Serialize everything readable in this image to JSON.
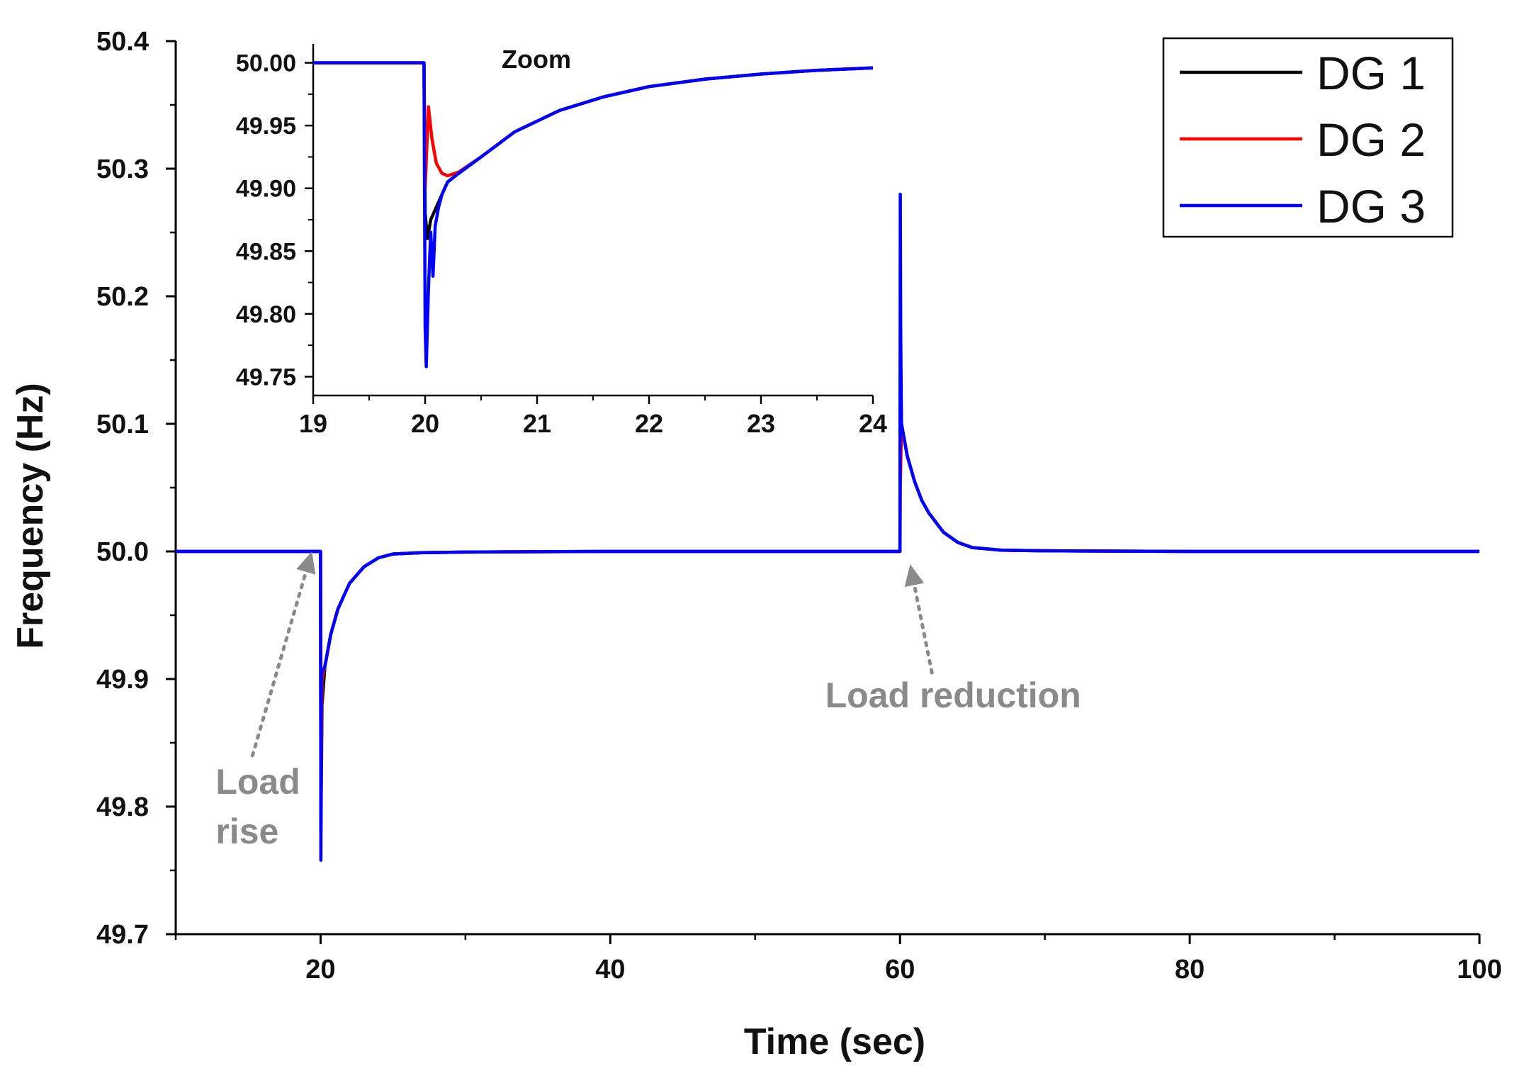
{
  "chart_data": [
    {
      "type": "line",
      "name": "main",
      "title": "",
      "xlabel": "Time (sec)",
      "ylabel": "Frequency (Hz)",
      "xlim": [
        10,
        100
      ],
      "ylim": [
        49.7,
        50.4
      ],
      "xticks": [
        20,
        40,
        60,
        80,
        100
      ],
      "xtick_labels": [
        "20",
        "40",
        "60",
        "80",
        "100"
      ],
      "yticks": [
        49.7,
        49.8,
        49.9,
        50.0,
        50.1,
        50.2,
        50.3,
        50.4
      ],
      "ytick_labels": [
        "49.7",
        "49.8",
        "49.9",
        "50.0",
        "50.1",
        "50.2",
        "50.3",
        "50.4"
      ],
      "grid": false,
      "legend_position": "top-right",
      "series": [
        {
          "name": "DG 1",
          "color": "#000000",
          "x": [
            10,
            20,
            20.02,
            20.1,
            20.3,
            20.7,
            21.2,
            22,
            23,
            24,
            25,
            27,
            30,
            40,
            50,
            60,
            60.02,
            60.1,
            60.5,
            61,
            61.5,
            62,
            63,
            64,
            65,
            67,
            70,
            80,
            90,
            100
          ],
          "y": [
            50.0,
            50.0,
            49.78,
            49.88,
            49.91,
            49.935,
            49.955,
            49.975,
            49.988,
            49.995,
            49.998,
            49.999,
            49.9995,
            50.0,
            50.0,
            50.0,
            50.15,
            50.1,
            50.075,
            50.055,
            50.04,
            50.03,
            50.015,
            50.007,
            50.003,
            50.001,
            50.0005,
            50.0,
            50.0,
            50.0
          ]
        },
        {
          "name": "DG 2",
          "color": "#ff0000",
          "x": [
            10,
            20,
            20.02,
            20.1,
            20.3,
            20.7,
            21.2,
            22,
            23,
            24,
            25,
            27,
            30,
            40,
            50,
            60,
            60.02,
            60.1,
            60.5,
            61,
            61.5,
            62,
            63,
            64,
            65,
            67,
            70,
            80,
            90,
            100
          ],
          "y": [
            50.0,
            50.0,
            49.8,
            49.9,
            49.91,
            49.935,
            49.955,
            49.975,
            49.988,
            49.995,
            49.998,
            49.999,
            49.9995,
            50.0,
            50.0,
            50.0,
            50.05,
            50.1,
            50.075,
            50.055,
            50.04,
            50.03,
            50.015,
            50.007,
            50.003,
            50.001,
            50.0005,
            50.0,
            50.0,
            50.0
          ]
        },
        {
          "name": "DG 3",
          "color": "#0000ff",
          "x": [
            10,
            20,
            20.02,
            20.05,
            20.1,
            20.3,
            20.7,
            21.2,
            22,
            23,
            24,
            25,
            27,
            30,
            40,
            50,
            60,
            60.02,
            60.05,
            60.1,
            60.5,
            61,
            61.5,
            62,
            63,
            64,
            65,
            67,
            70,
            80,
            90,
            100
          ],
          "y": [
            50.0,
            50.0,
            49.758,
            49.9,
            49.905,
            49.91,
            49.935,
            49.955,
            49.975,
            49.988,
            49.995,
            49.998,
            49.999,
            49.9995,
            50.0,
            50.0,
            50.0,
            50.28,
            50.17,
            50.1,
            50.075,
            50.055,
            50.04,
            50.03,
            50.015,
            50.007,
            50.003,
            50.001,
            50.0005,
            50.0,
            50.0,
            50.0
          ]
        }
      ],
      "annotations": [
        {
          "name": "load-rise",
          "lines": [
            "Load",
            "rise"
          ],
          "arrow_to": [
            19.4,
            50.0
          ],
          "arrow_from": [
            15.3,
            49.84
          ]
        },
        {
          "name": "load-reduction",
          "lines": [
            "Load reduction"
          ],
          "arrow_to": [
            60.7,
            49.99
          ],
          "arrow_from": [
            62.2,
            49.905
          ]
        }
      ]
    },
    {
      "type": "line",
      "name": "inset",
      "title": "Zoom",
      "xlabel": "",
      "ylabel": "",
      "xlim": [
        19,
        24
      ],
      "ylim": [
        49.735,
        50.015
      ],
      "xticks": [
        19,
        20,
        21,
        22,
        23,
        24
      ],
      "xtick_labels": [
        "19",
        "20",
        "21",
        "22",
        "23",
        "24"
      ],
      "yticks": [
        49.75,
        49.8,
        49.85,
        49.9,
        49.95,
        50.0
      ],
      "ytick_labels": [
        "49.75",
        "49.80",
        "49.85",
        "49.90",
        "49.95",
        "50.00"
      ],
      "grid": false,
      "series": [
        {
          "name": "DG 1",
          "color": "#000000",
          "x": [
            19,
            19.99,
            20.0,
            20.02,
            20.05,
            20.1,
            20.15,
            20.2,
            20.3,
            20.5,
            20.8,
            21.2,
            21.6,
            22,
            22.5,
            23,
            23.5,
            24
          ],
          "y": [
            50.0,
            50.0,
            49.88,
            49.86,
            49.875,
            49.885,
            49.895,
            49.905,
            49.912,
            49.925,
            49.945,
            49.962,
            49.973,
            49.981,
            49.987,
            49.991,
            49.994,
            49.996
          ]
        },
        {
          "name": "DG 2",
          "color": "#ff0000",
          "x": [
            19,
            19.99,
            20.0,
            20.03,
            20.06,
            20.1,
            20.15,
            20.2,
            20.3,
            20.5,
            20.8,
            21.2,
            21.6,
            22,
            22.5,
            23,
            23.5,
            24
          ],
          "y": [
            50.0,
            50.0,
            49.9,
            49.965,
            49.94,
            49.92,
            49.912,
            49.91,
            49.913,
            49.925,
            49.945,
            49.962,
            49.973,
            49.981,
            49.987,
            49.991,
            49.994,
            49.996
          ]
        },
        {
          "name": "DG 3",
          "color": "#0000ff",
          "x": [
            19,
            19.99,
            20.0,
            20.01,
            20.03,
            20.05,
            20.07,
            20.09,
            20.12,
            20.15,
            20.2,
            20.3,
            20.5,
            20.8,
            21.2,
            21.6,
            22,
            22.5,
            23,
            23.5,
            24
          ],
          "y": [
            50.0,
            50.0,
            49.79,
            49.758,
            49.82,
            49.865,
            49.83,
            49.87,
            49.885,
            49.895,
            49.905,
            49.912,
            49.925,
            49.945,
            49.962,
            49.973,
            49.981,
            49.987,
            49.991,
            49.994,
            49.996
          ]
        }
      ]
    }
  ]
}
